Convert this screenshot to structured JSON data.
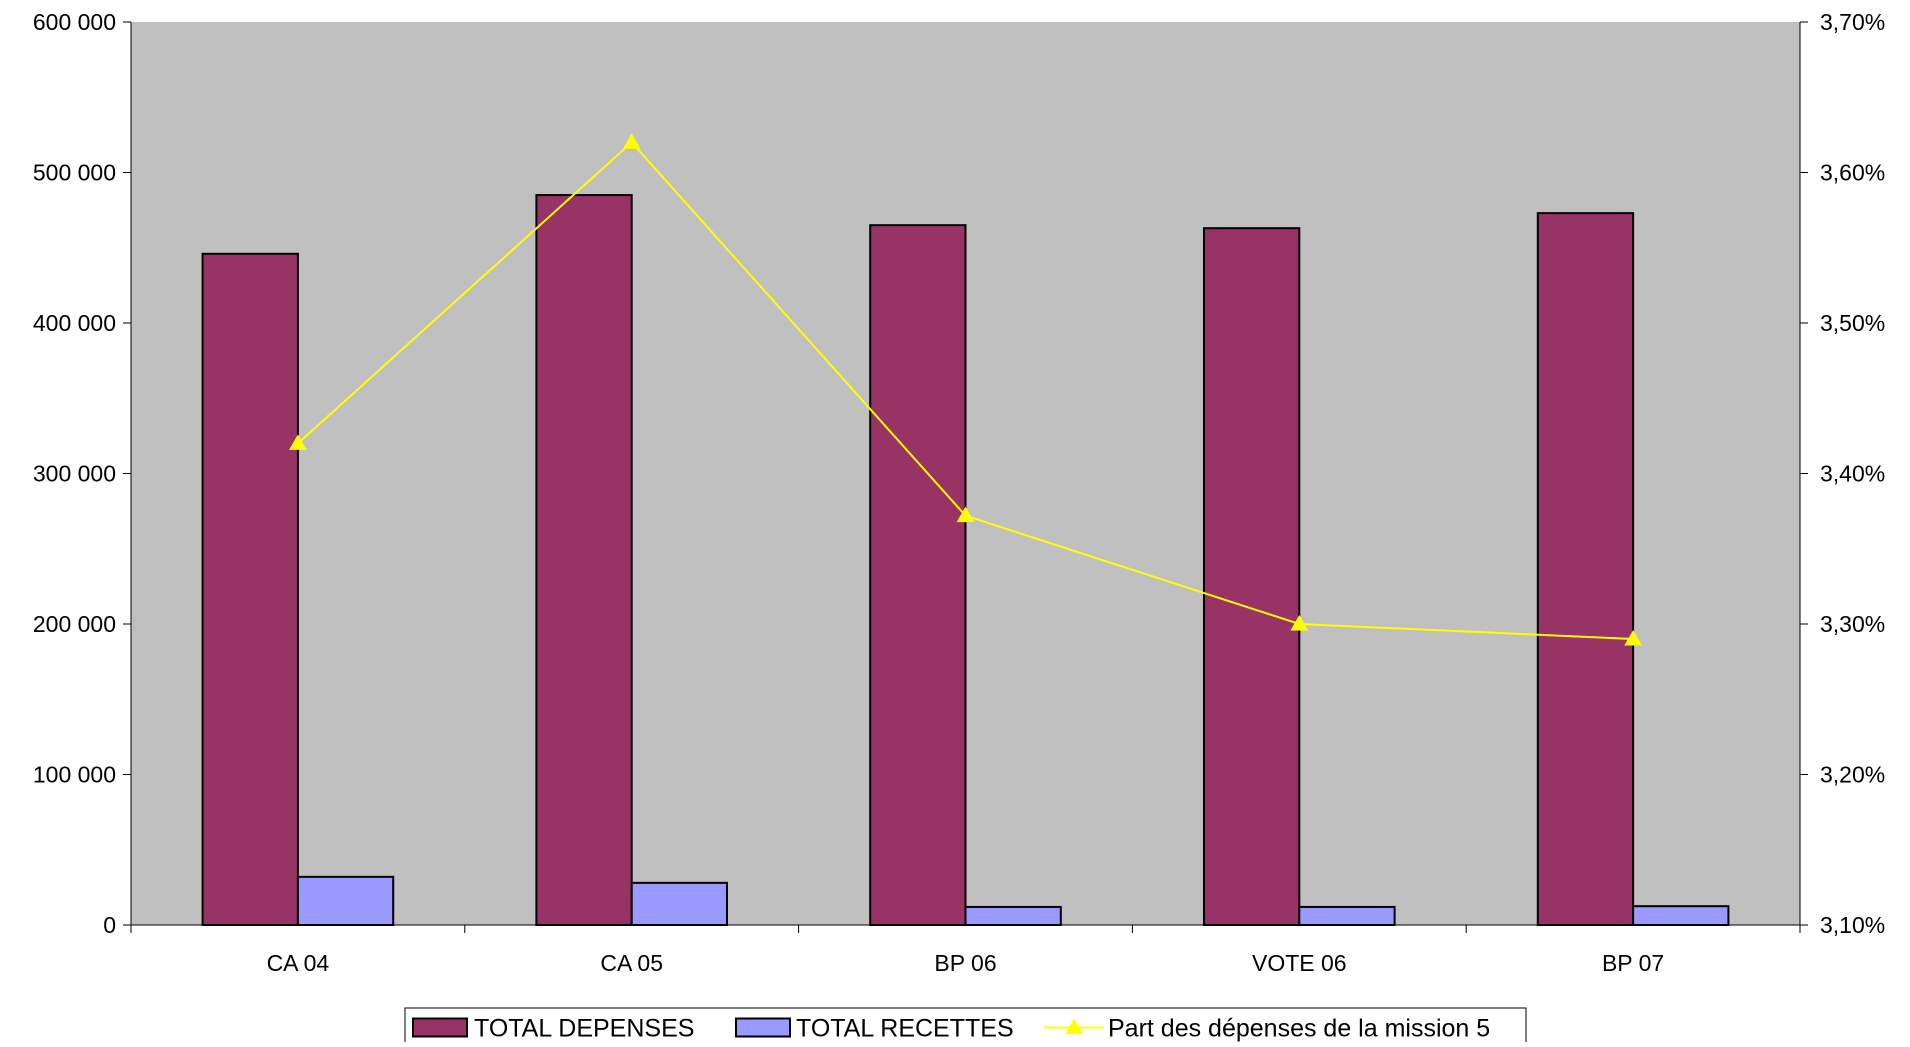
{
  "chart_data": {
    "type": "bar",
    "categories": [
      "CA 04",
      "CA 05",
      "BP 06",
      "VOTE 06",
      "BP 07"
    ],
    "series": [
      {
        "name": "TOTAL DEPENSES",
        "type": "bar",
        "axis": "left",
        "color": "#993366",
        "values": [
          446000,
          485000,
          465000,
          463000,
          473000
        ]
      },
      {
        "name": "TOTAL RECETTES",
        "type": "bar",
        "axis": "left",
        "color": "#9999ff",
        "values": [
          32000,
          28000,
          12000,
          12000,
          12500
        ]
      },
      {
        "name": "Part des dépenses de la mission 5",
        "type": "line",
        "axis": "right",
        "color": "#ffff00",
        "marker": "triangle",
        "values": [
          3.42,
          3.62,
          3.372,
          3.3,
          3.29
        ]
      }
    ],
    "y_left": {
      "min": 0,
      "max": 600000,
      "ticks": [
        0,
        100000,
        200000,
        300000,
        400000,
        500000,
        600000
      ],
      "tick_labels": [
        "0",
        "100 000",
        "200 000",
        "300 000",
        "400 000",
        "500 000",
        "600 000"
      ]
    },
    "y_right": {
      "min": 3.1,
      "max": 3.7,
      "ticks": [
        3.1,
        3.2,
        3.3,
        3.4,
        3.5,
        3.6,
        3.7
      ],
      "tick_labels": [
        "3,10%",
        "3,20%",
        "3,30%",
        "3,40%",
        "3,50%",
        "3,60%",
        "3,70%"
      ]
    },
    "plot_background": "#c0c0c0",
    "grid": false,
    "legend_position": "bottom"
  }
}
